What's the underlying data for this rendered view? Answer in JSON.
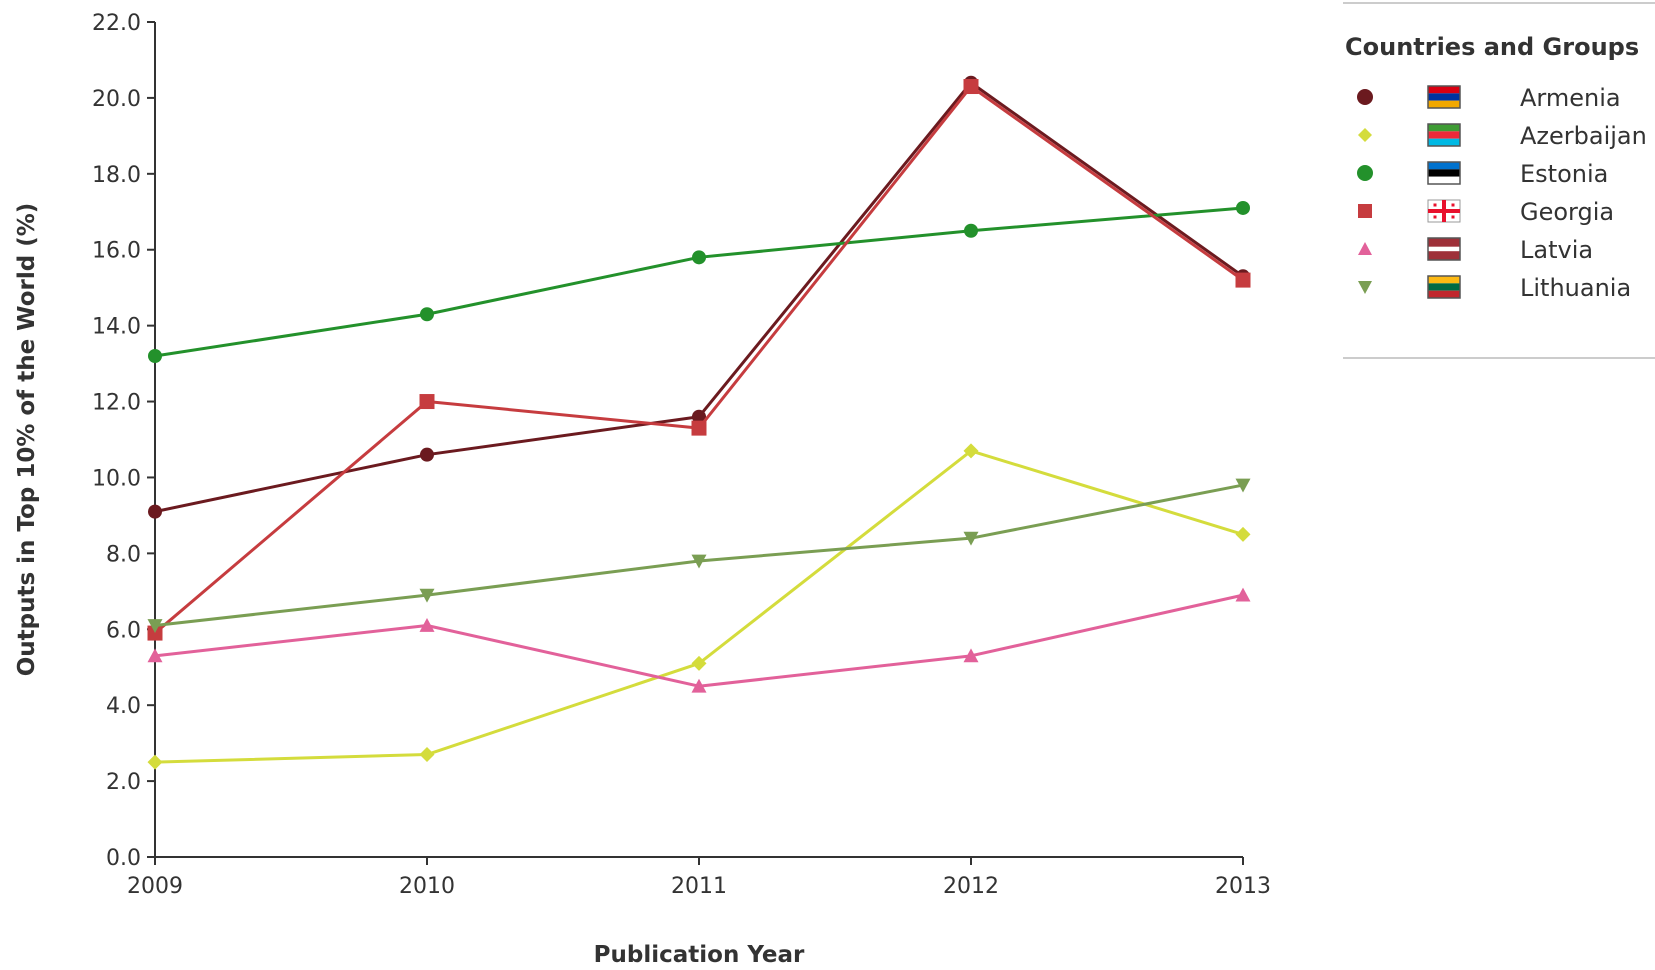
{
  "chart_data": {
    "type": "line",
    "title": "",
    "xlabel": "Publication Year",
    "ylabel": "Outputs in Top 10% of the World (%)",
    "x": [
      "2009",
      "2010",
      "2011",
      "2012",
      "2013"
    ],
    "ylim": [
      0,
      22
    ],
    "yticks": [
      "0.0",
      "2.0",
      "4.0",
      "6.0",
      "8.0",
      "10.0",
      "12.0",
      "14.0",
      "16.0",
      "18.0",
      "20.0",
      "22.0"
    ],
    "grid": false,
    "legend": {
      "title": "Countries and Groups",
      "placement": "top-right"
    },
    "series": [
      {
        "name": "Armenia",
        "color": "#6b1a1f",
        "marker": "circle",
        "flag": "armenia-flag-icon",
        "values": [
          9.1,
          10.6,
          11.6,
          20.4,
          15.3
        ]
      },
      {
        "name": "Azerbaijan",
        "color": "#d4dc3c",
        "marker": "diamond",
        "flag": "azerbaijan-flag-icon",
        "values": [
          2.5,
          2.7,
          5.1,
          10.7,
          8.5
        ]
      },
      {
        "name": "Estonia",
        "color": "#23912b",
        "marker": "circle",
        "flag": "estonia-flag-icon",
        "values": [
          13.2,
          14.3,
          15.8,
          16.5,
          17.1
        ]
      },
      {
        "name": "Georgia",
        "color": "#c63c3f",
        "marker": "square",
        "flag": "georgia-flag-icon",
        "values": [
          5.9,
          12.0,
          11.3,
          20.3,
          15.2
        ]
      },
      {
        "name": "Latvia",
        "color": "#e2619a",
        "marker": "triangle-up",
        "flag": "latvia-flag-icon",
        "values": [
          5.3,
          6.1,
          4.5,
          5.3,
          6.9
        ]
      },
      {
        "name": "Lithuania",
        "color": "#7a9e53",
        "marker": "triangle-down",
        "flag": "lithuania-flag-icon",
        "values": [
          6.1,
          6.9,
          7.8,
          8.4,
          9.8
        ]
      }
    ]
  }
}
